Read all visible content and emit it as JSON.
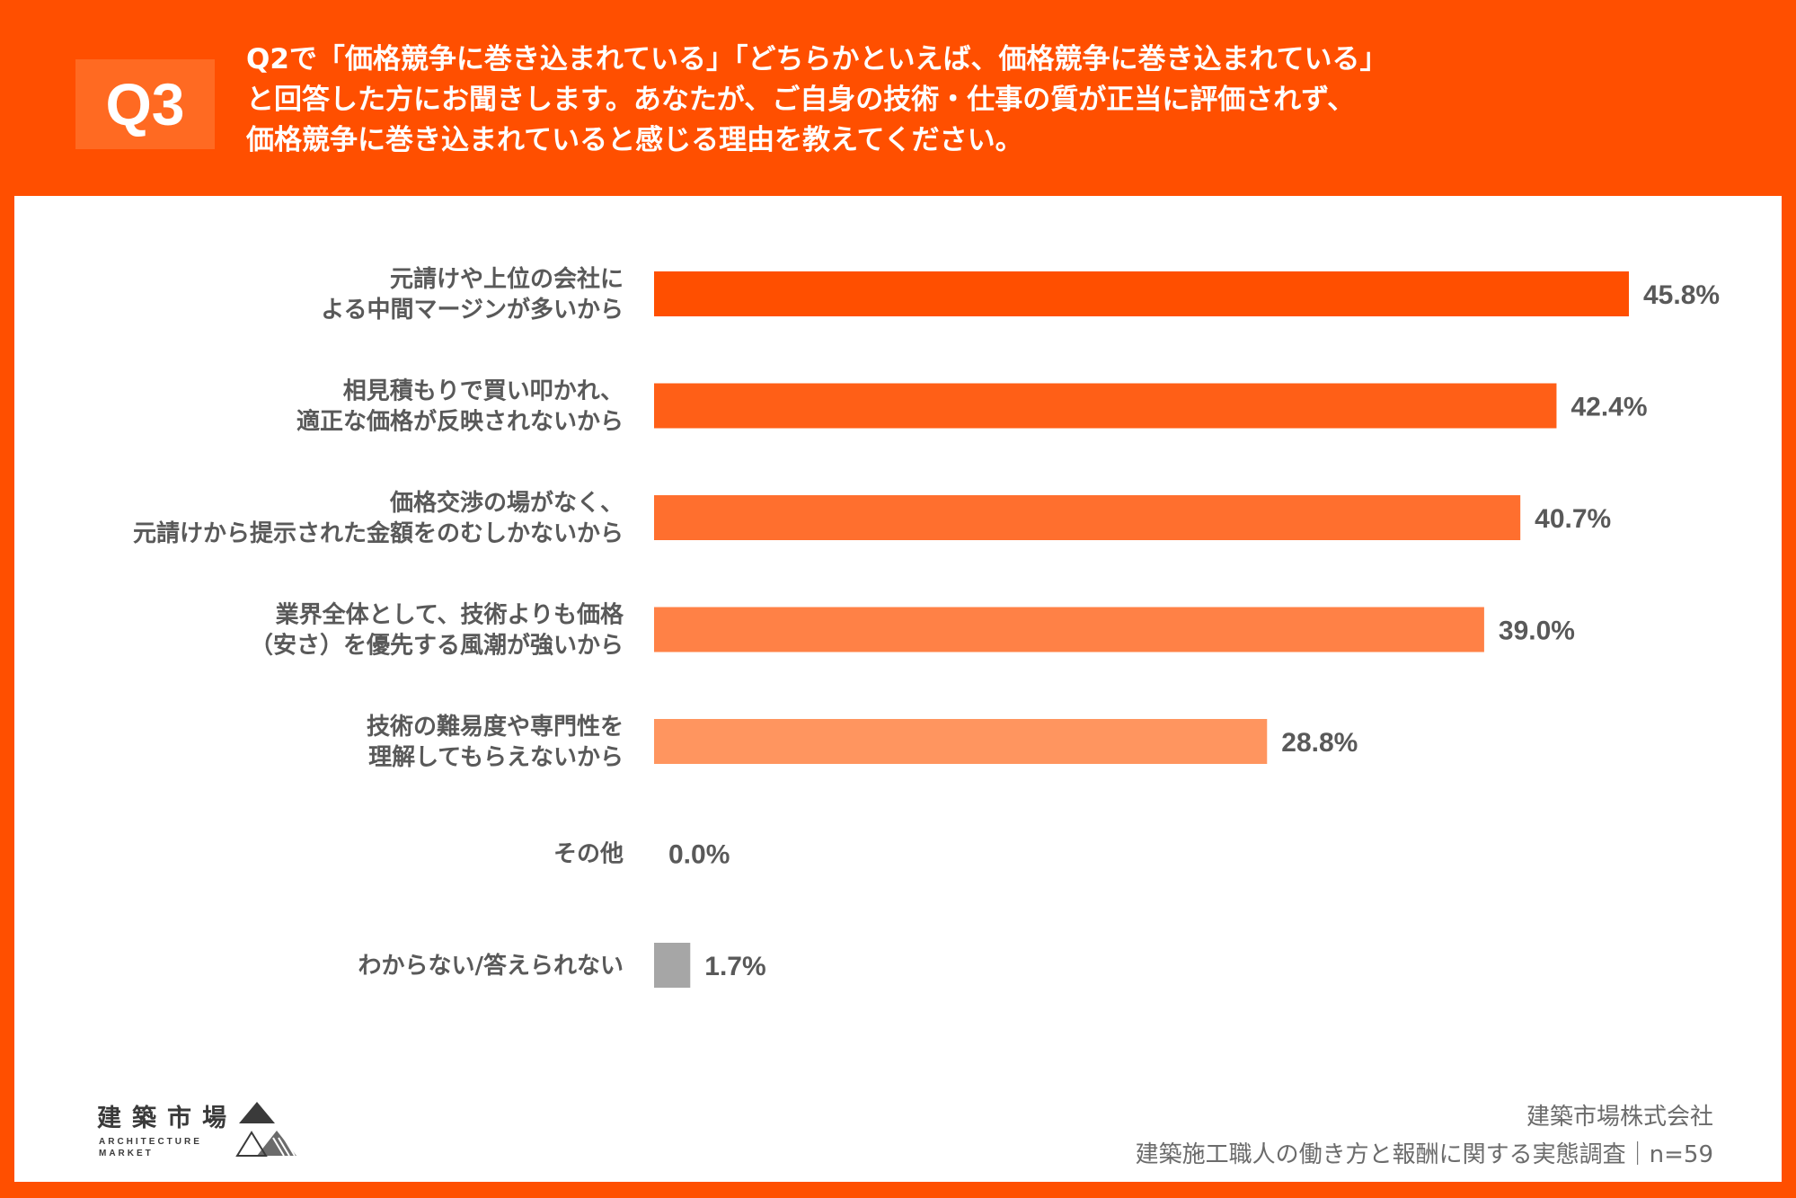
{
  "header": {
    "question_badge": "Q3",
    "question_text": "Q2で「価格競争に巻き込まれている」「どちらかといえば、価格競争に巻き込まれている」\nと回答した方にお聞きします。あなたが、ご自身の技術・仕事の質が正当に評価されず、\n価格競争に巻き込まれていると感じる理由を教えてください。"
  },
  "chart_data": {
    "type": "bar",
    "orientation": "horizontal",
    "categories": [
      [
        "元請けや上位の会社に",
        "よる中間マージンが多いから"
      ],
      [
        "相見積もりで買い叩かれ、",
        "適正な価格が反映されないから"
      ],
      [
        "価格交渉の場がなく、",
        "元請けから提示された金額をのむしかないから"
      ],
      [
        "業界全体として、技術よりも価格",
        "（安さ）を優先する風潮が強いから"
      ],
      [
        "技術の難易度や専門性を",
        "理解してもらえないから"
      ],
      [
        "その他"
      ],
      [
        "わからない/答えられない"
      ]
    ],
    "values": [
      45.8,
      42.4,
      40.7,
      39.0,
      28.8,
      0.0,
      1.7
    ],
    "value_labels": [
      "45.8%",
      "42.4%",
      "40.7%",
      "39.0%",
      "28.8%",
      "0.0%",
      "1.7%"
    ],
    "bar_colors": [
      "#ff4f00",
      "#ff5f17",
      "#ff6f2e",
      "#ff8146",
      "#ff955f",
      "#ff955f",
      "#a6a6a6"
    ],
    "xlim": [
      0,
      50
    ],
    "grid": false,
    "legend": "none"
  },
  "logo": {
    "name_jp": "建築市場",
    "name_en_line1": "ARCHITECTURE",
    "name_en_line2": "MARKET"
  },
  "source": {
    "company": "建築市場株式会社",
    "survey": "建築施工職人の働き方と報酬に関する実態調査｜n=59"
  }
}
